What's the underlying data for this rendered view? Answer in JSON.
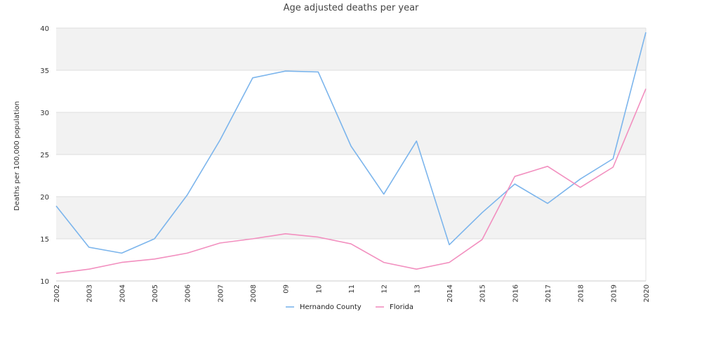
{
  "chart_data": {
    "type": "line",
    "title": "Age adjusted deaths per year",
    "xlabel": "",
    "ylabel": "Deaths per 100,000 population",
    "categories": [
      "2002",
      "2003",
      "2004",
      "2005",
      "2006",
      "2007",
      "2008",
      "09",
      "10",
      "11",
      "12",
      "13",
      "2014",
      "2015",
      "2016",
      "2017",
      "2018",
      "2019",
      "2020"
    ],
    "ylim": [
      10,
      40
    ],
    "yticks": [
      "10",
      "15",
      "20",
      "25",
      "30",
      "35",
      "40"
    ],
    "grid": "horizontal alternating bands",
    "legend_position": "bottom-center",
    "series": [
      {
        "name": "Hernando County",
        "color": "#7cb5ec",
        "values": [
          18.9,
          14.0,
          13.3,
          15.0,
          20.2,
          26.7,
          34.1,
          34.9,
          34.8,
          26.0,
          20.3,
          26.6,
          14.3,
          18.1,
          21.5,
          19.2,
          22.1,
          24.5,
          39.5
        ]
      },
      {
        "name": "Florida",
        "color": "#f28fbf",
        "values": [
          10.9,
          11.4,
          12.2,
          12.6,
          13.3,
          14.5,
          15.0,
          15.6,
          15.2,
          14.4,
          12.2,
          11.4,
          12.2,
          14.9,
          22.4,
          23.6,
          21.1,
          23.5,
          32.8
        ]
      }
    ]
  }
}
